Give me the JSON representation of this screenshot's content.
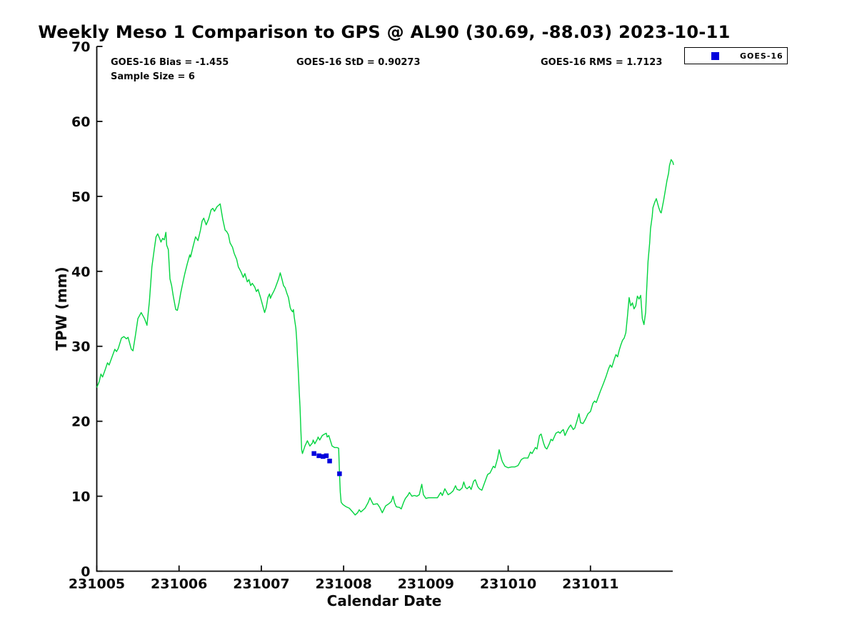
{
  "title": "Weekly Meso 1 Comparison to GPS @ AL90 (30.69, -88.03) 2023-10-11",
  "stats": {
    "bias": "GOES-16 Bias = -1.455",
    "std": "GOES-16 StD = 0.90273",
    "rms": "GOES-16 RMS = 1.7123",
    "sample_size": "Sample Size = 6"
  },
  "legend": {
    "label": "GOES-16",
    "marker": "square",
    "color": "#0000dd"
  },
  "colors": {
    "line_green": "#00d43e",
    "marker_blue": "#0000dd",
    "axis": "#0a0a0a",
    "background": "#ffffff"
  },
  "chart_data": {
    "type": "line",
    "title": "Weekly Meso 1 Comparison to GPS @ AL90 (30.69, -88.03) 2023-10-11",
    "xlabel": "Calendar Date",
    "ylabel": "TPW (mm)",
    "x_base": 231005,
    "xlim_days": [
      0,
      7
    ],
    "ylim": [
      0,
      70
    ],
    "xticks": [
      231005,
      231006,
      231007,
      231008,
      231009,
      231010,
      231011
    ],
    "yticks": [
      0,
      10,
      20,
      30,
      40,
      50,
      60,
      70
    ],
    "grid": false,
    "legend_position": "top-right-outside",
    "series": [
      {
        "name": "GPS TPW",
        "type": "line",
        "color": "#00d43e",
        "points": [
          [
            0.0,
            24.5
          ],
          [
            0.03,
            25.3
          ],
          [
            0.05,
            26.3
          ],
          [
            0.07,
            25.9
          ],
          [
            0.1,
            26.8
          ],
          [
            0.13,
            27.8
          ],
          [
            0.15,
            27.5
          ],
          [
            0.18,
            28.4
          ],
          [
            0.22,
            29.6
          ],
          [
            0.24,
            29.3
          ],
          [
            0.26,
            29.7
          ],
          [
            0.3,
            31.1
          ],
          [
            0.33,
            31.3
          ],
          [
            0.36,
            31.0
          ],
          [
            0.38,
            31.2
          ],
          [
            0.42,
            29.6
          ],
          [
            0.44,
            29.4
          ],
          [
            0.47,
            31.5
          ],
          [
            0.5,
            33.7
          ],
          [
            0.54,
            34.5
          ],
          [
            0.56,
            34.1
          ],
          [
            0.58,
            33.7
          ],
          [
            0.61,
            32.8
          ],
          [
            0.64,
            36.0
          ],
          [
            0.67,
            40.6
          ],
          [
            0.7,
            43.0
          ],
          [
            0.72,
            44.6
          ],
          [
            0.74,
            45.0
          ],
          [
            0.76,
            44.5
          ],
          [
            0.78,
            43.9
          ],
          [
            0.8,
            44.4
          ],
          [
            0.82,
            44.2
          ],
          [
            0.84,
            45.2
          ],
          [
            0.85,
            43.5
          ],
          [
            0.87,
            42.9
          ],
          [
            0.89,
            39.0
          ],
          [
            0.91,
            38.1
          ],
          [
            0.93,
            36.7
          ],
          [
            0.96,
            34.9
          ],
          [
            0.98,
            34.8
          ],
          [
            1.0,
            35.8
          ],
          [
            1.02,
            37.1
          ],
          [
            1.05,
            38.7
          ],
          [
            1.07,
            39.7
          ],
          [
            1.1,
            41.0
          ],
          [
            1.13,
            42.2
          ],
          [
            1.14,
            41.9
          ],
          [
            1.17,
            43.3
          ],
          [
            1.2,
            44.6
          ],
          [
            1.23,
            44.1
          ],
          [
            1.26,
            45.5
          ],
          [
            1.28,
            46.7
          ],
          [
            1.3,
            47.1
          ],
          [
            1.33,
            46.2
          ],
          [
            1.36,
            47.0
          ],
          [
            1.39,
            48.2
          ],
          [
            1.41,
            48.4
          ],
          [
            1.43,
            48.0
          ],
          [
            1.46,
            48.6
          ],
          [
            1.5,
            49.0
          ],
          [
            1.53,
            47.0
          ],
          [
            1.56,
            45.5
          ],
          [
            1.58,
            45.3
          ],
          [
            1.6,
            44.9
          ],
          [
            1.62,
            43.8
          ],
          [
            1.65,
            43.2
          ],
          [
            1.67,
            42.4
          ],
          [
            1.7,
            41.6
          ],
          [
            1.72,
            40.6
          ],
          [
            1.75,
            40.0
          ],
          [
            1.78,
            39.2
          ],
          [
            1.8,
            39.7
          ],
          [
            1.83,
            38.6
          ],
          [
            1.85,
            38.9
          ],
          [
            1.87,
            38.1
          ],
          [
            1.89,
            38.4
          ],
          [
            1.92,
            37.9
          ],
          [
            1.94,
            37.3
          ],
          [
            1.96,
            37.6
          ],
          [
            1.99,
            36.5
          ],
          [
            2.01,
            35.7
          ],
          [
            2.04,
            34.5
          ],
          [
            2.06,
            35.2
          ],
          [
            2.08,
            36.5
          ],
          [
            2.1,
            37.0
          ],
          [
            2.11,
            36.4
          ],
          [
            2.13,
            36.9
          ],
          [
            2.15,
            37.3
          ],
          [
            2.17,
            37.8
          ],
          [
            2.19,
            38.4
          ],
          [
            2.21,
            39.0
          ],
          [
            2.23,
            39.8
          ],
          [
            2.25,
            39.0
          ],
          [
            2.27,
            38.1
          ],
          [
            2.29,
            37.8
          ],
          [
            2.31,
            37.1
          ],
          [
            2.33,
            36.5
          ],
          [
            2.35,
            35.2
          ],
          [
            2.36,
            34.9
          ],
          [
            2.38,
            34.6
          ],
          [
            2.39,
            34.9
          ],
          [
            2.4,
            33.9
          ],
          [
            2.42,
            32.4
          ],
          [
            2.43,
            30.8
          ],
          [
            2.44,
            28.6
          ],
          [
            2.45,
            26.5
          ],
          [
            2.46,
            24.1
          ],
          [
            2.47,
            21.9
          ],
          [
            2.48,
            19.0
          ],
          [
            2.49,
            16.2
          ],
          [
            2.5,
            15.7
          ],
          [
            2.53,
            16.7
          ],
          [
            2.56,
            17.4
          ],
          [
            2.59,
            16.7
          ],
          [
            2.62,
            17.1
          ],
          [
            2.63,
            17.5
          ],
          [
            2.65,
            17.0
          ],
          [
            2.68,
            17.6
          ],
          [
            2.69,
            17.9
          ],
          [
            2.71,
            17.5
          ],
          [
            2.74,
            18.1
          ],
          [
            2.77,
            18.3
          ],
          [
            2.79,
            18.4
          ],
          [
            2.8,
            17.9
          ],
          [
            2.82,
            18.1
          ],
          [
            2.84,
            17.4
          ],
          [
            2.86,
            16.7
          ],
          [
            2.89,
            16.5
          ],
          [
            2.92,
            16.5
          ],
          [
            2.94,
            16.4
          ],
          [
            2.95,
            13.0
          ],
          [
            2.96,
            10.5
          ],
          [
            2.97,
            9.2
          ],
          [
            2.99,
            8.9
          ],
          [
            3.03,
            8.6
          ],
          [
            3.07,
            8.4
          ],
          [
            3.11,
            7.9
          ],
          [
            3.14,
            7.5
          ],
          [
            3.17,
            7.8
          ],
          [
            3.19,
            8.2
          ],
          [
            3.21,
            7.9
          ],
          [
            3.26,
            8.4
          ],
          [
            3.3,
            9.2
          ],
          [
            3.32,
            9.8
          ],
          [
            3.36,
            8.9
          ],
          [
            3.41,
            9.0
          ],
          [
            3.44,
            8.5
          ],
          [
            3.47,
            7.8
          ],
          [
            3.51,
            8.7
          ],
          [
            3.55,
            9.0
          ],
          [
            3.58,
            9.3
          ],
          [
            3.6,
            10.0
          ],
          [
            3.62,
            9.1
          ],
          [
            3.64,
            8.6
          ],
          [
            3.68,
            8.5
          ],
          [
            3.7,
            8.3
          ],
          [
            3.73,
            9.2
          ],
          [
            3.75,
            9.7
          ],
          [
            3.78,
            10.1
          ],
          [
            3.8,
            10.5
          ],
          [
            3.83,
            10.0
          ],
          [
            3.86,
            10.1
          ],
          [
            3.89,
            10.0
          ],
          [
            3.92,
            10.2
          ],
          [
            3.95,
            11.6
          ],
          [
            3.97,
            10.2
          ],
          [
            4.0,
            9.7
          ],
          [
            4.03,
            9.8
          ],
          [
            4.08,
            9.8
          ],
          [
            4.14,
            9.8
          ],
          [
            4.18,
            10.5
          ],
          [
            4.2,
            10.1
          ],
          [
            4.23,
            11.0
          ],
          [
            4.25,
            10.6
          ],
          [
            4.27,
            10.2
          ],
          [
            4.3,
            10.4
          ],
          [
            4.33,
            10.7
          ],
          [
            4.36,
            11.4
          ],
          [
            4.38,
            10.9
          ],
          [
            4.41,
            10.8
          ],
          [
            4.44,
            11.1
          ],
          [
            4.46,
            11.9
          ],
          [
            4.48,
            11.2
          ],
          [
            4.5,
            11.0
          ],
          [
            4.53,
            11.3
          ],
          [
            4.55,
            10.9
          ],
          [
            4.58,
            12.0
          ],
          [
            4.6,
            12.2
          ],
          [
            4.63,
            11.3
          ],
          [
            4.65,
            11.0
          ],
          [
            4.68,
            10.8
          ],
          [
            4.72,
            12.0
          ],
          [
            4.75,
            12.9
          ],
          [
            4.78,
            13.1
          ],
          [
            4.82,
            14.0
          ],
          [
            4.84,
            13.8
          ],
          [
            4.87,
            15.0
          ],
          [
            4.89,
            16.2
          ],
          [
            4.92,
            14.9
          ],
          [
            4.93,
            14.6
          ],
          [
            4.96,
            14.0
          ],
          [
            5.0,
            13.8
          ],
          [
            5.04,
            13.9
          ],
          [
            5.08,
            13.9
          ],
          [
            5.12,
            14.1
          ],
          [
            5.16,
            14.9
          ],
          [
            5.19,
            15.1
          ],
          [
            5.24,
            15.1
          ],
          [
            5.27,
            15.9
          ],
          [
            5.29,
            15.7
          ],
          [
            5.33,
            16.5
          ],
          [
            5.35,
            16.3
          ],
          [
            5.38,
            18.1
          ],
          [
            5.4,
            18.3
          ],
          [
            5.43,
            17.1
          ],
          [
            5.45,
            16.5
          ],
          [
            5.47,
            16.3
          ],
          [
            5.5,
            17.0
          ],
          [
            5.52,
            17.6
          ],
          [
            5.54,
            17.4
          ],
          [
            5.58,
            18.4
          ],
          [
            5.61,
            18.6
          ],
          [
            5.63,
            18.4
          ],
          [
            5.65,
            18.7
          ],
          [
            5.67,
            18.9
          ],
          [
            5.69,
            18.1
          ],
          [
            5.72,
            18.8
          ],
          [
            5.74,
            19.2
          ],
          [
            5.76,
            19.5
          ],
          [
            5.79,
            18.9
          ],
          [
            5.81,
            19.1
          ],
          [
            5.84,
            20.2
          ],
          [
            5.86,
            21.0
          ],
          [
            5.88,
            19.8
          ],
          [
            5.91,
            19.7
          ],
          [
            5.94,
            20.3
          ],
          [
            5.97,
            21.0
          ],
          [
            6.0,
            21.3
          ],
          [
            6.03,
            22.4
          ],
          [
            6.05,
            22.7
          ],
          [
            6.07,
            22.5
          ],
          [
            6.12,
            24.0
          ],
          [
            6.16,
            25.1
          ],
          [
            6.19,
            26.0
          ],
          [
            6.22,
            27.0
          ],
          [
            6.24,
            27.5
          ],
          [
            6.26,
            27.2
          ],
          [
            6.29,
            28.3
          ],
          [
            6.31,
            28.9
          ],
          [
            6.33,
            28.6
          ],
          [
            6.35,
            29.5
          ],
          [
            6.37,
            30.2
          ],
          [
            6.39,
            30.8
          ],
          [
            6.41,
            31.1
          ],
          [
            6.43,
            31.8
          ],
          [
            6.45,
            34.0
          ],
          [
            6.47,
            36.5
          ],
          [
            6.49,
            35.4
          ],
          [
            6.51,
            35.8
          ],
          [
            6.53,
            35.0
          ],
          [
            6.55,
            35.4
          ],
          [
            6.57,
            36.7
          ],
          [
            6.59,
            36.3
          ],
          [
            6.61,
            36.8
          ],
          [
            6.63,
            33.7
          ],
          [
            6.65,
            32.9
          ],
          [
            6.67,
            34.5
          ],
          [
            6.68,
            36.8
          ],
          [
            6.7,
            41.3
          ],
          [
            6.72,
            43.8
          ],
          [
            6.73,
            45.7
          ],
          [
            6.75,
            47.3
          ],
          [
            6.76,
            48.5
          ],
          [
            6.78,
            49.2
          ],
          [
            6.8,
            49.7
          ],
          [
            6.83,
            48.5
          ],
          [
            6.85,
            47.9
          ],
          [
            6.86,
            47.8
          ],
          [
            6.89,
            49.5
          ],
          [
            6.91,
            50.8
          ],
          [
            6.93,
            52.1
          ],
          [
            6.95,
            53.1
          ],
          [
            6.96,
            54.1
          ],
          [
            6.98,
            54.9
          ],
          [
            7.0,
            54.6
          ],
          [
            7.01,
            54.2
          ]
        ]
      },
      {
        "name": "GOES-16",
        "type": "scatter",
        "marker": "square",
        "color": "#0000dd",
        "points": [
          [
            2.64,
            15.7
          ],
          [
            2.7,
            15.4
          ],
          [
            2.75,
            15.3
          ],
          [
            2.79,
            15.4
          ],
          [
            2.83,
            14.7
          ],
          [
            2.95,
            13.0
          ]
        ]
      }
    ]
  }
}
